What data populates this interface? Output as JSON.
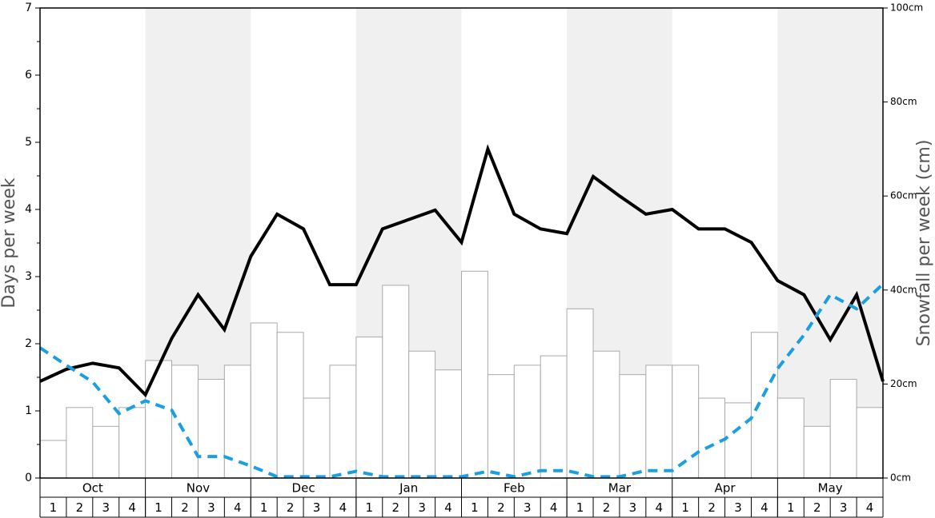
{
  "chart_data": {
    "type": "bar",
    "y_label": "Days per week",
    "y2_label": "Snowfall per week (cm)",
    "months": [
      "Oct",
      "Nov",
      "Dec",
      "Jan",
      "Feb",
      "Mar",
      "Apr",
      "May"
    ],
    "categories": [
      "1",
      "2",
      "3",
      "4",
      "1",
      "2",
      "3",
      "4",
      "1",
      "2",
      "3",
      "4",
      "1",
      "2",
      "3",
      "4",
      "1",
      "2",
      "3",
      "4",
      "1",
      "2",
      "3",
      "4",
      "1",
      "2",
      "3",
      "4",
      "1",
      "2",
      "3",
      "4"
    ],
    "shade_color": "#f0f0f0",
    "bar_color": "#ffffff",
    "bar_edge": "#aaaaaa",
    "values": [
      8,
      15,
      11,
      15,
      25,
      24,
      21,
      24,
      33,
      31,
      17,
      24,
      30,
      41,
      27,
      23,
      44,
      22,
      24,
      26,
      36,
      27,
      22,
      24,
      24,
      17,
      16,
      31,
      17,
      11,
      21,
      15
    ],
    "axis": "y2",
    "xlim": [
      0,
      32
    ],
    "series": [
      {
        "color": "#000000",
        "dashed": false,
        "x": [
          0,
          1,
          2,
          3,
          4,
          5,
          6,
          7,
          8,
          9,
          10,
          11,
          12,
          13,
          14,
          15,
          16,
          17,
          18,
          19,
          20,
          21,
          22,
          23,
          24,
          25,
          26,
          27,
          28,
          29,
          30,
          31,
          32
        ],
        "values": [
          1.44,
          1.62,
          1.71,
          1.64,
          1.24,
          2.08,
          2.73,
          2.21,
          3.3,
          3.93,
          3.71,
          2.88,
          2.88,
          3.71,
          3.85,
          3.99,
          3.51,
          4.9,
          3.93,
          3.71,
          3.64,
          4.49,
          4.2,
          3.93,
          4.0,
          3.71,
          3.71,
          3.51,
          2.94,
          2.73,
          2.06,
          2.73,
          1.44
        ]
      },
      {
        "color": "#1a9fe0",
        "dashed": true,
        "x": [
          0,
          1,
          2,
          3,
          4,
          5,
          6,
          7,
          8,
          9,
          10,
          11,
          12,
          13,
          14,
          15,
          16,
          17,
          18,
          19,
          20,
          21,
          22,
          23,
          24,
          25,
          26,
          27,
          28,
          29,
          30,
          31,
          32
        ],
        "values": [
          1.94,
          1.68,
          1.43,
          0.96,
          1.15,
          1.01,
          0.32,
          0.32,
          0.18,
          0.02,
          0.02,
          0.02,
          0.1,
          0.02,
          0.02,
          0.02,
          0.02,
          0.1,
          0.02,
          0.11,
          0.11,
          0.02,
          0.02,
          0.11,
          0.11,
          0.39,
          0.58,
          0.89,
          1.63,
          2.13,
          2.73,
          2.52,
          2.89
        ]
      }
    ],
    "ylim": [
      0,
      7
    ],
    "yticks": [
      0,
      1,
      2,
      3,
      4,
      5,
      6,
      7
    ],
    "yminorticks": [
      0.5,
      1.5,
      2.5,
      3.5,
      4.5,
      5.5,
      6.5
    ],
    "y2lim": [
      0,
      100
    ],
    "y2ticks": [
      {
        "value": 0,
        "label": "0cm"
      },
      {
        "value": 20,
        "label": "20cm"
      },
      {
        "value": 40,
        "label": "40cm"
      },
      {
        "value": 60,
        "label": "60cm"
      },
      {
        "value": 80,
        "label": "80cm"
      },
      {
        "value": 100,
        "label": "100cm"
      }
    ]
  }
}
